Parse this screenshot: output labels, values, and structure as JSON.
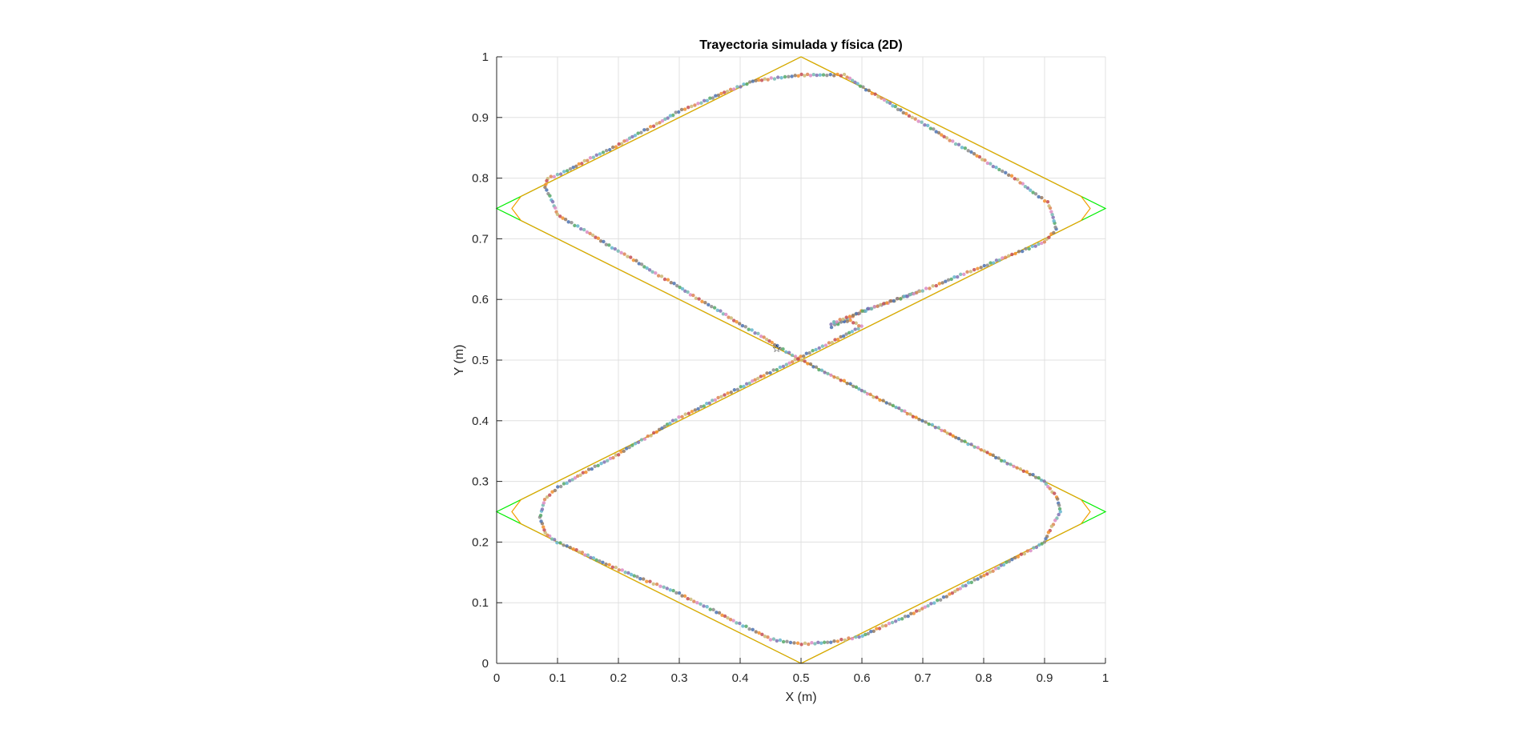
{
  "chart_data": {
    "type": "scatter",
    "title": "Trayectoria simulada y física (2D)",
    "xlabel": "X (m)",
    "ylabel": "Y (m)",
    "xlim": [
      0,
      1
    ],
    "ylim": [
      0,
      1
    ],
    "grid": true,
    "xticks": [
      "0",
      "0.1",
      "0.2",
      "0.3",
      "0.4",
      "0.5",
      "0.6",
      "0.7",
      "0.8",
      "0.9",
      "1"
    ],
    "yticks": [
      "0",
      "0.1",
      "0.2",
      "0.3",
      "0.4",
      "0.5",
      "0.6",
      "0.7",
      "0.8",
      "0.9",
      "1"
    ],
    "colors": {
      "reference": "#00ee00",
      "simulated": "#f0a000",
      "points": [
        "#4c72b0",
        "#dd8452",
        "#55a868",
        "#c44e52",
        "#8172b3",
        "#937860",
        "#da8bc3",
        "#8c8c8c",
        "#ccb974",
        "#64b5cd",
        "#f28e2b",
        "#76b7b2"
      ],
      "grid": "#e0e0e0",
      "axis": "#262626"
    },
    "reference_path": [
      [
        0.5,
        1.0
      ],
      [
        1.0,
        0.75
      ],
      [
        0.0,
        0.25
      ],
      [
        0.5,
        0.0
      ],
      [
        1.0,
        0.25
      ],
      [
        0.0,
        0.75
      ],
      [
        0.5,
        1.0
      ]
    ],
    "simulated_path": [
      [
        0.5,
        1.0
      ],
      [
        0.96,
        0.77
      ],
      [
        0.975,
        0.75
      ],
      [
        0.96,
        0.73
      ],
      [
        0.04,
        0.27
      ],
      [
        0.025,
        0.25
      ],
      [
        0.04,
        0.23
      ],
      [
        0.5,
        0.0
      ],
      [
        0.96,
        0.23
      ],
      [
        0.975,
        0.25
      ],
      [
        0.96,
        0.27
      ],
      [
        0.04,
        0.73
      ],
      [
        0.025,
        0.75
      ],
      [
        0.04,
        0.77
      ],
      [
        0.5,
        1.0
      ]
    ],
    "physical_points_path": [
      [
        0.55,
        0.555
      ],
      [
        0.6,
        0.58
      ],
      [
        0.7,
        0.615
      ],
      [
        0.8,
        0.655
      ],
      [
        0.9,
        0.695
      ],
      [
        0.92,
        0.715
      ],
      [
        0.905,
        0.76
      ],
      [
        0.85,
        0.8
      ],
      [
        0.75,
        0.86
      ],
      [
        0.65,
        0.92
      ],
      [
        0.57,
        0.97
      ],
      [
        0.5,
        0.97
      ],
      [
        0.42,
        0.96
      ],
      [
        0.3,
        0.91
      ],
      [
        0.2,
        0.855
      ],
      [
        0.1,
        0.805
      ],
      [
        0.085,
        0.8
      ],
      [
        0.08,
        0.785
      ],
      [
        0.1,
        0.74
      ],
      [
        0.2,
        0.68
      ],
      [
        0.3,
        0.62
      ],
      [
        0.4,
        0.56
      ],
      [
        0.5,
        0.5
      ],
      [
        0.6,
        0.45
      ],
      [
        0.7,
        0.4
      ],
      [
        0.8,
        0.35
      ],
      [
        0.9,
        0.3
      ],
      [
        0.92,
        0.275
      ],
      [
        0.925,
        0.25
      ],
      [
        0.915,
        0.23
      ],
      [
        0.9,
        0.2
      ],
      [
        0.8,
        0.145
      ],
      [
        0.7,
        0.09
      ],
      [
        0.6,
        0.045
      ],
      [
        0.55,
        0.035
      ],
      [
        0.5,
        0.032
      ],
      [
        0.45,
        0.04
      ],
      [
        0.4,
        0.065
      ],
      [
        0.3,
        0.115
      ],
      [
        0.2,
        0.155
      ],
      [
        0.1,
        0.2
      ],
      [
        0.08,
        0.215
      ],
      [
        0.07,
        0.24
      ],
      [
        0.08,
        0.27
      ],
      [
        0.1,
        0.29
      ],
      [
        0.2,
        0.345
      ],
      [
        0.3,
        0.405
      ],
      [
        0.4,
        0.455
      ],
      [
        0.5,
        0.505
      ],
      [
        0.6,
        0.555
      ],
      [
        0.58,
        0.565
      ],
      [
        0.55,
        0.56
      ],
      [
        0.6,
        0.58
      ],
      [
        0.7,
        0.615
      ]
    ],
    "start_marker": {
      "x": 0.46,
      "y": 0.52,
      "symbol": "☆"
    }
  }
}
